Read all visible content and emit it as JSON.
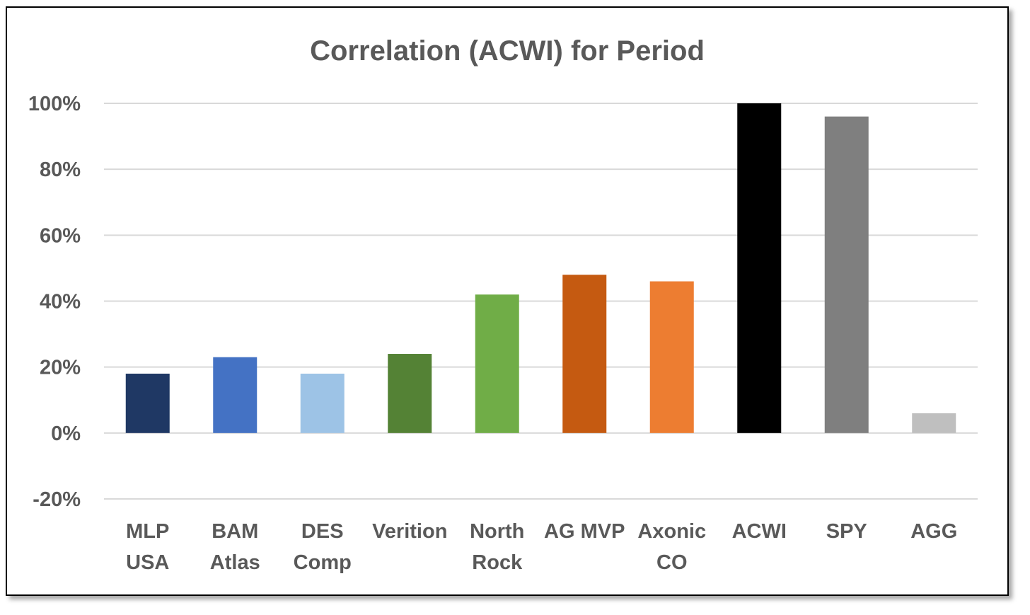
{
  "chart_data": {
    "type": "bar",
    "title": "Correlation (ACWI) for Period",
    "xlabel": "",
    "ylabel": "",
    "ylim": [
      -20,
      100
    ],
    "yticks": [
      100,
      80,
      60,
      40,
      20,
      0,
      -20
    ],
    "ytick_labels": [
      "100%",
      "80%",
      "60%",
      "40%",
      "20%",
      "0%",
      "-20%"
    ],
    "grid": true,
    "legend": "none",
    "categories": [
      [
        "MLP",
        "USA"
      ],
      [
        "BAM",
        "Atlas"
      ],
      [
        "DES",
        "Comp"
      ],
      [
        "Verition"
      ],
      [
        "North",
        "Rock"
      ],
      [
        "AG MVP"
      ],
      [
        "Axonic",
        "CO"
      ],
      [
        "ACWI"
      ],
      [
        "SPY"
      ],
      [
        "AGG"
      ]
    ],
    "values": [
      18,
      23,
      18,
      24,
      42,
      48,
      46,
      100,
      96,
      6
    ],
    "colors": [
      "#1f3864",
      "#4472c4",
      "#9dc3e6",
      "#548235",
      "#70ad47",
      "#c55a11",
      "#ed7d31",
      "#000000",
      "#7f7f7f",
      "#bfbfbf"
    ]
  }
}
